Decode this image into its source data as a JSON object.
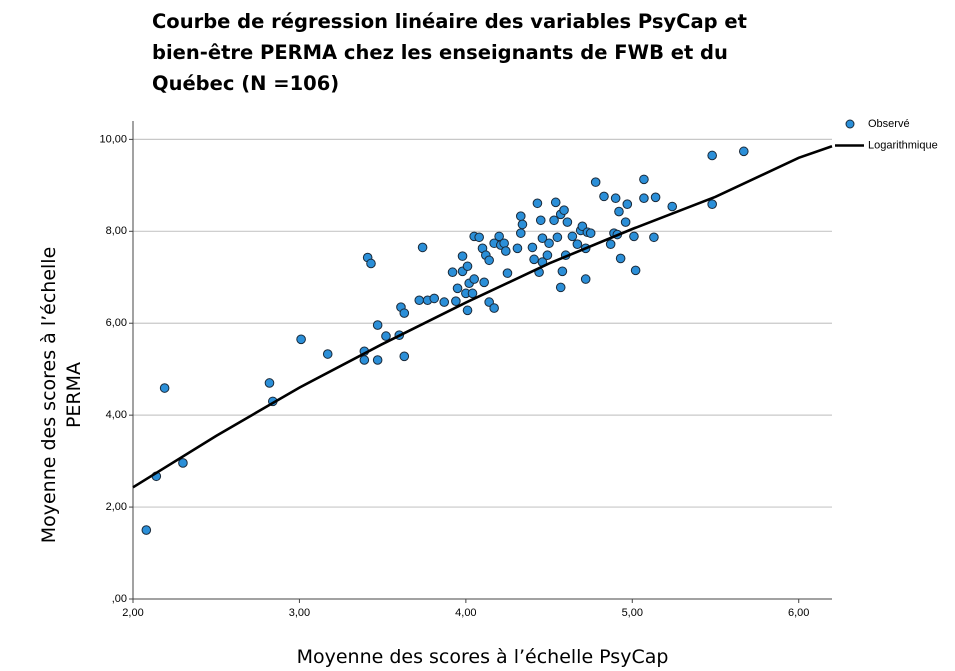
{
  "chart_data": {
    "type": "scatter",
    "title": "Courbe de régression linéaire des variables PsyCap et bien-être PERMA chez les enseignants de FWB et du Québec (N =106)",
    "x_label": "Moyenne des scores à l’échelle PsyCap",
    "y_label_lines": [
      "Moyenne des scores à l’échelle",
      "PERMA"
    ],
    "xlim": [
      2,
      6.2
    ],
    "ylim": [
      0,
      10.4
    ],
    "xticks": [
      {
        "value": 2,
        "label": "2,00"
      },
      {
        "value": 3,
        "label": "3,00"
      },
      {
        "value": 4,
        "label": "4,00"
      },
      {
        "value": 5,
        "label": "5,00"
      },
      {
        "value": 6,
        "label": "6,00"
      }
    ],
    "yticks": [
      {
        "value": 0,
        "label": ",00"
      },
      {
        "value": 2,
        "label": "2,00"
      },
      {
        "value": 4,
        "label": "4,00"
      },
      {
        "value": 6,
        "label": "6,00"
      },
      {
        "value": 8,
        "label": "8,00"
      },
      {
        "value": 10,
        "label": "10,00"
      }
    ],
    "grid": true,
    "legend": "upper right",
    "series": [
      {
        "name": "Observé",
        "color": "#2b8fd8",
        "kind": "points",
        "x": [
          2.08,
          2.14,
          2.19,
          2.3,
          2.82,
          2.84,
          3.01,
          3.17,
          3.39,
          3.39,
          3.41,
          3.43,
          3.47,
          3.47,
          3.52,
          3.6,
          3.61,
          3.63,
          3.63,
          3.72,
          3.74,
          3.77,
          3.81,
          3.87,
          3.92,
          3.94,
          3.95,
          3.98,
          3.98,
          4.0,
          4.01,
          4.01,
          4.02,
          4.04,
          4.05,
          4.05,
          4.08,
          4.1,
          4.11,
          4.12,
          4.14,
          4.14,
          4.17,
          4.17,
          4.2,
          4.21,
          4.23,
          4.24,
          4.25,
          4.31,
          4.33,
          4.33,
          4.34,
          4.4,
          4.41,
          4.43,
          4.44,
          4.45,
          4.46,
          4.46,
          4.49,
          4.5,
          4.53,
          4.54,
          4.55,
          4.57,
          4.57,
          4.58,
          4.59,
          4.6,
          4.61,
          4.64,
          4.67,
          4.69,
          4.7,
          4.72,
          4.72,
          4.73,
          4.75,
          4.78,
          4.83,
          4.87,
          4.89,
          4.9,
          4.91,
          4.92,
          4.93,
          4.96,
          4.97,
          5.01,
          5.02,
          5.07,
          5.07,
          5.14,
          5.13,
          5.24,
          5.48,
          5.48,
          5.67
        ],
        "values": [
          1.5,
          2.67,
          4.59,
          2.96,
          4.7,
          4.3,
          5.65,
          5.33,
          5.39,
          5.2,
          7.43,
          7.3,
          5.96,
          5.2,
          5.72,
          5.74,
          6.35,
          5.28,
          6.22,
          6.5,
          7.65,
          6.5,
          6.54,
          6.46,
          7.11,
          6.48,
          6.76,
          7.46,
          7.13,
          6.65,
          6.28,
          7.24,
          6.87,
          6.65,
          6.96,
          7.89,
          7.87,
          7.63,
          6.89,
          7.48,
          7.37,
          6.46,
          6.33,
          7.74,
          7.89,
          7.7,
          7.74,
          7.57,
          7.09,
          7.63,
          8.33,
          7.96,
          8.15,
          7.65,
          7.39,
          8.61,
          7.11,
          8.24,
          7.85,
          7.33,
          7.48,
          7.74,
          8.24,
          8.63,
          7.87,
          8.37,
          6.78,
          7.13,
          8.46,
          7.48,
          8.2,
          7.89,
          7.72,
          8.02,
          8.11,
          7.63,
          6.96,
          7.98,
          7.96,
          9.07,
          8.76,
          7.72,
          7.96,
          8.72,
          7.93,
          8.43,
          7.41,
          8.2,
          8.59,
          7.89,
          7.15,
          9.13,
          8.72,
          8.74,
          7.87,
          8.54,
          9.65,
          8.59,
          9.74
        ]
      },
      {
        "name": "Logarithmique",
        "color": "#000000",
        "kind": "line",
        "x": [
          2,
          2.5,
          3,
          3.5,
          4,
          4.5,
          5,
          5.5,
          6,
          6.2
        ],
        "values": [
          2.43,
          3.55,
          4.6,
          5.55,
          6.45,
          7.3,
          8.05,
          8.75,
          9.6,
          9.85
        ]
      }
    ]
  }
}
